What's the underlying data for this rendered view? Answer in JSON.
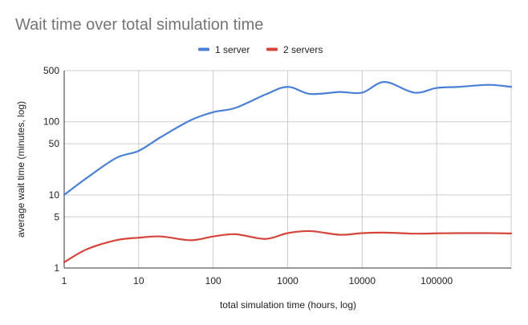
{
  "chart_data": {
    "type": "line",
    "title": "Wait time over total simulation time",
    "xlabel": "total simulation time (hours, log)",
    "ylabel": "average wait time (minutes, log)",
    "x_scale": "log",
    "y_scale": "log",
    "xlim": [
      1,
      1000000
    ],
    "ylim": [
      1,
      500
    ],
    "x_ticks": [
      {
        "value": 1,
        "label": "1"
      },
      {
        "value": 10,
        "label": "10"
      },
      {
        "value": 100,
        "label": "100"
      },
      {
        "value": 1000,
        "label": "1000"
      },
      {
        "value": 10000,
        "label": "10000"
      },
      {
        "value": 100000,
        "label": "100000"
      }
    ],
    "y_ticks": [
      {
        "value": 1,
        "label": "1"
      },
      {
        "value": 5,
        "label": "5"
      },
      {
        "value": 10,
        "label": "10"
      },
      {
        "value": 50,
        "label": "50"
      },
      {
        "value": 100,
        "label": "100"
      },
      {
        "value": 500,
        "label": "500"
      }
    ],
    "grid": true,
    "legend_position": "top",
    "series": [
      {
        "name": "1 server",
        "color": "#4a7fd6",
        "x": [
          1,
          2,
          5,
          10,
          20,
          50,
          100,
          200,
          500,
          1000,
          2000,
          5000,
          10000,
          20000,
          50000,
          100000,
          200000,
          500000,
          1000000
        ],
        "y": [
          10,
          17,
          32,
          40,
          62,
          105,
          135,
          155,
          235,
          300,
          240,
          255,
          250,
          350,
          250,
          290,
          300,
          320,
          300
        ]
      },
      {
        "name": "2 servers",
        "color": "#d5453b",
        "x": [
          1,
          2,
          5,
          10,
          20,
          50,
          100,
          200,
          500,
          1000,
          2000,
          5000,
          10000,
          20000,
          50000,
          100000,
          200000,
          500000,
          1000000
        ],
        "y": [
          1.2,
          1.8,
          2.4,
          2.6,
          2.7,
          2.4,
          2.7,
          2.9,
          2.5,
          3.0,
          3.2,
          2.85,
          3.0,
          3.05,
          2.95,
          2.98,
          3.0,
          3.0,
          2.97
        ]
      }
    ]
  }
}
